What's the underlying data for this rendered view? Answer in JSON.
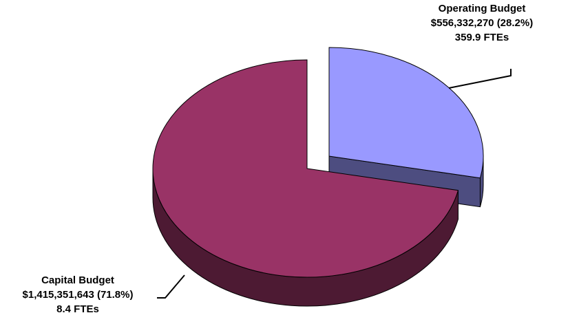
{
  "chart_data": {
    "type": "pie",
    "style": "3d-exploded",
    "slices": [
      {
        "name": "Operating Budget",
        "value": 556332270,
        "percent": 28.2,
        "value_text": "$556,332,270 (28.2%)",
        "fte_text": "359.9 FTEs",
        "color": "#9999FF",
        "exploded": true
      },
      {
        "name": "Capital Budget",
        "value": 1415351643,
        "percent": 71.8,
        "value_text": "$1,415,351,643 (71.8%)",
        "fte_text": "8.4 FTEs",
        "color": "#993366",
        "exploded": false
      }
    ],
    "legend": "none",
    "labels": "outside-with-leader-lines"
  }
}
